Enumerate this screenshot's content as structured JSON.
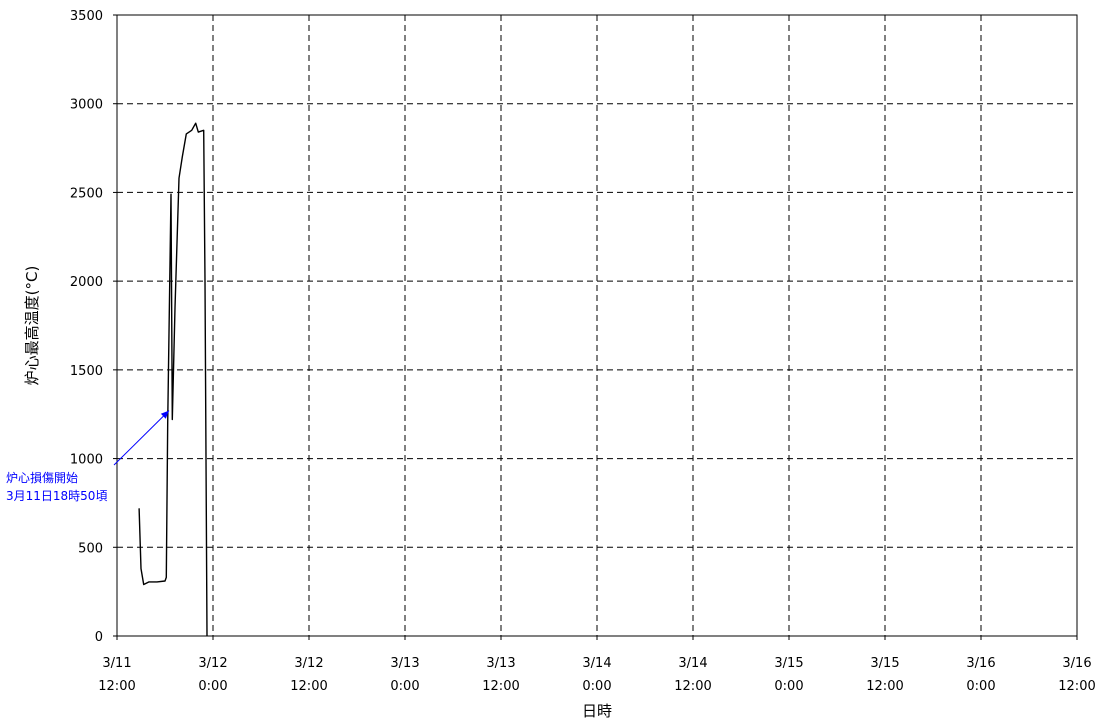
{
  "chart_data": {
    "type": "line",
    "title": "",
    "xlabel": "日時",
    "ylabel": "炉心最高温度(°C)",
    "ylim": [
      0,
      3500
    ],
    "yticks": [
      0,
      500,
      1000,
      1500,
      2000,
      2500,
      3000,
      3500
    ],
    "xlim": [
      "3/11 12:00",
      "3/16 12:00"
    ],
    "xticks": [
      {
        "line1": "3/11",
        "line2": "12:00"
      },
      {
        "line1": "3/12",
        "line2": "0:00"
      },
      {
        "line1": "3/12",
        "line2": "12:00"
      },
      {
        "line1": "3/13",
        "line2": "0:00"
      },
      {
        "line1": "3/13",
        "line2": "12:00"
      },
      {
        "line1": "3/14",
        "line2": "0:00"
      },
      {
        "line1": "3/14",
        "line2": "12:00"
      },
      {
        "line1": "3/15",
        "line2": "0:00"
      },
      {
        "line1": "3/15",
        "line2": "12:00"
      },
      {
        "line1": "3/16",
        "line2": "0:00"
      },
      {
        "line1": "3/16",
        "line2": "12:00"
      }
    ],
    "grid": true,
    "series": [
      {
        "color": "#000000",
        "points": [
          [
            "3/11 14:46",
            720
          ],
          [
            "3/11 15:00",
            380
          ],
          [
            "3/11 15:20",
            290
          ],
          [
            "3/11 16:00",
            305
          ],
          [
            "3/11 17:00",
            305
          ],
          [
            "3/11 18:00",
            310
          ],
          [
            "3/11 18:10",
            330
          ],
          [
            "3/11 18:20",
            1200
          ],
          [
            "3/11 18:45",
            2490
          ],
          [
            "3/11 18:55",
            1220
          ],
          [
            "3/11 19:15",
            1850
          ],
          [
            "3/11 19:45",
            2580
          ],
          [
            "3/11 20:10",
            2700
          ],
          [
            "3/11 20:40",
            2830
          ],
          [
            "3/11 21:20",
            2850
          ],
          [
            "3/11 21:50",
            2890
          ],
          [
            "3/11 22:10",
            2840
          ],
          [
            "3/11 22:50",
            2850
          ],
          [
            "3/11 23:00",
            2000
          ],
          [
            "3/11 23:15",
            0
          ]
        ]
      }
    ],
    "annotation": {
      "line1": "炉心損傷開始",
      "line2": "3月11日18時50頃",
      "color": "#0000ff",
      "arrow_to": [
        "3/11 18:30",
        1270
      ]
    }
  }
}
